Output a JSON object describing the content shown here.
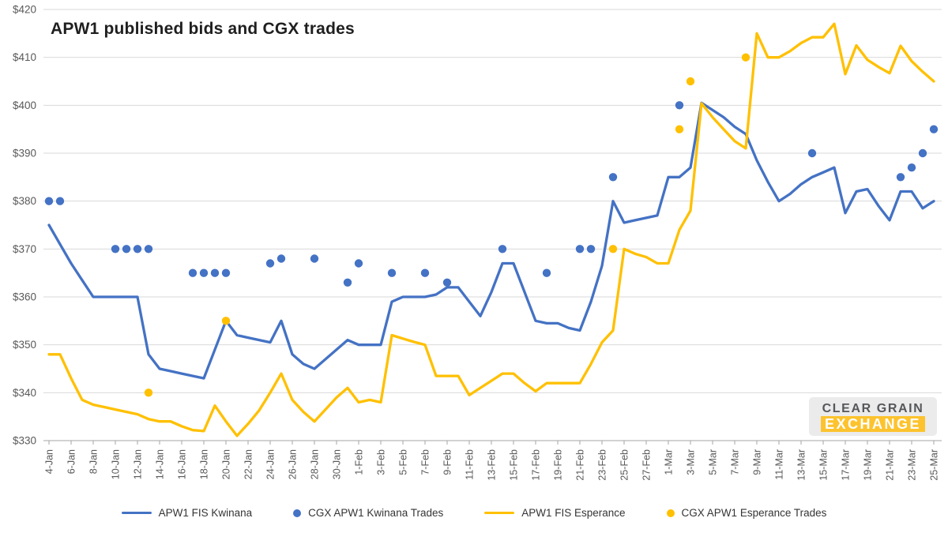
{
  "title": "APW1 published bids and CGX trades",
  "logo": {
    "line1": "CLEAR GRAIN",
    "line2": "EXCHANGE"
  },
  "colors": {
    "kwinana_blue": "#4472C4",
    "esperance_gold": "#FFC000",
    "gridline": "#D9D9D9",
    "axis_line": "#A6A6A6",
    "axis_text": "#595959",
    "legend_text": "#353535",
    "logo_bar": "#FDC32E"
  },
  "chart_data": {
    "type": "line+scatter",
    "title": "APW1 published bids and CGX trades",
    "xlabel": "",
    "ylabel": "",
    "grid": "horizontal",
    "legend_position": "bottom",
    "y_axis": {
      "min": 330,
      "max": 420,
      "step": 10,
      "prefix": "$",
      "tick_labels": [
        "$330",
        "$340",
        "$350",
        "$360",
        "$370",
        "$380",
        "$390",
        "$400",
        "$410",
        "$420"
      ]
    },
    "x_axis": {
      "tick_every_days": 2,
      "tick_labels": [
        "4-Jan",
        "6-Jan",
        "8-Jan",
        "10-Jan",
        "12-Jan",
        "14-Jan",
        "16-Jan",
        "18-Jan",
        "20-Jan",
        "22-Jan",
        "24-Jan",
        "26-Jan",
        "28-Jan",
        "30-Jan",
        "1-Feb",
        "3-Feb",
        "5-Feb",
        "7-Feb",
        "9-Feb",
        "11-Feb",
        "13-Feb",
        "15-Feb",
        "17-Feb",
        "19-Feb",
        "21-Feb",
        "23-Feb",
        "25-Feb",
        "27-Feb",
        "1-Mar",
        "3-Mar",
        "5-Mar",
        "7-Mar",
        "9-Mar",
        "11-Mar",
        "13-Mar",
        "15-Mar",
        "17-Mar",
        "19-Mar",
        "21-Mar",
        "23-Mar",
        "25-Mar"
      ]
    },
    "days": [
      "4-Jan",
      "5-Jan",
      "6-Jan",
      "7-Jan",
      "8-Jan",
      "9-Jan",
      "10-Jan",
      "11-Jan",
      "12-Jan",
      "13-Jan",
      "14-Jan",
      "15-Jan",
      "16-Jan",
      "17-Jan",
      "18-Jan",
      "19-Jan",
      "20-Jan",
      "21-Jan",
      "22-Jan",
      "23-Jan",
      "24-Jan",
      "25-Jan",
      "26-Jan",
      "27-Jan",
      "28-Jan",
      "29-Jan",
      "30-Jan",
      "31-Jan",
      "1-Feb",
      "2-Feb",
      "3-Feb",
      "4-Feb",
      "5-Feb",
      "6-Feb",
      "7-Feb",
      "8-Feb",
      "9-Feb",
      "10-Feb",
      "11-Feb",
      "12-Feb",
      "13-Feb",
      "14-Feb",
      "15-Feb",
      "16-Feb",
      "17-Feb",
      "18-Feb",
      "19-Feb",
      "20-Feb",
      "21-Feb",
      "22-Feb",
      "23-Feb",
      "24-Feb",
      "25-Feb",
      "26-Feb",
      "27-Feb",
      "28-Feb",
      "1-Mar",
      "2-Mar",
      "3-Mar",
      "4-Mar",
      "5-Mar",
      "6-Mar",
      "7-Mar",
      "8-Mar",
      "9-Mar",
      "10-Mar",
      "11-Mar",
      "12-Mar",
      "13-Mar",
      "14-Mar",
      "15-Mar",
      "16-Mar",
      "17-Mar",
      "18-Mar",
      "19-Mar",
      "20-Mar",
      "21-Mar",
      "22-Mar",
      "23-Mar",
      "24-Mar",
      "25-Mar"
    ],
    "series": [
      {
        "name": "APW1 FIS Kwinana",
        "type": "line",
        "color": "#4472C4",
        "values": [
          375,
          371,
          367,
          363.5,
          360,
          360,
          360,
          360,
          360,
          348,
          345,
          344.5,
          344,
          343.5,
          343,
          349,
          355,
          352,
          351.5,
          351,
          350.5,
          355,
          348,
          346,
          345,
          347,
          349,
          351,
          350,
          350,
          350,
          359,
          360,
          360,
          360,
          360.5,
          362,
          362,
          359,
          356,
          361,
          367,
          367,
          361,
          355,
          354.5,
          354.5,
          353.5,
          353,
          359,
          366.5,
          380,
          375.5,
          376,
          376.5,
          377,
          385,
          385,
          387,
          400.5,
          399,
          397.5,
          395.5,
          394,
          388.5,
          384,
          380,
          381.5,
          383.5,
          385,
          386,
          387,
          377.5,
          382,
          382.5,
          379,
          376,
          382,
          382,
          378.5,
          380
        ]
      },
      {
        "name": "CGX APW1 Kwinana Trades",
        "type": "scatter",
        "color": "#4472C4",
        "points": [
          [
            0,
            380
          ],
          [
            1,
            380
          ],
          [
            6,
            370
          ],
          [
            7,
            370
          ],
          [
            8,
            370
          ],
          [
            9,
            370
          ],
          [
            13,
            365
          ],
          [
            14,
            365
          ],
          [
            15,
            365
          ],
          [
            16,
            365
          ],
          [
            20,
            367
          ],
          [
            21,
            368
          ],
          [
            24,
            368
          ],
          [
            27,
            363
          ],
          [
            28,
            367
          ],
          [
            31,
            365
          ],
          [
            34,
            365
          ],
          [
            36,
            363
          ],
          [
            41,
            370
          ],
          [
            45,
            365
          ],
          [
            48,
            370
          ],
          [
            49,
            370
          ],
          [
            51,
            385
          ],
          [
            57,
            400
          ],
          [
            69,
            390
          ],
          [
            77,
            385
          ],
          [
            78,
            387
          ],
          [
            79,
            390
          ],
          [
            80,
            395
          ]
        ]
      },
      {
        "name": "APW1 FIS Esperance",
        "type": "line",
        "color": "#FFC000",
        "values": [
          348,
          348,
          343,
          338.5,
          337.5,
          337,
          336.5,
          336,
          335.5,
          334.5,
          334,
          334,
          333,
          332.2,
          332,
          337.3,
          334,
          331,
          333.5,
          336.3,
          340,
          344,
          338.5,
          336,
          334,
          336.5,
          339,
          341,
          338,
          338.5,
          338,
          352,
          351.3,
          350.6,
          350,
          343.5,
          343.5,
          343.5,
          339.5,
          341,
          342.5,
          344,
          344,
          342,
          340.3,
          342,
          342,
          342,
          342,
          346,
          350.5,
          353,
          370,
          369,
          368.3,
          367,
          367,
          374,
          378,
          400.4,
          397.5,
          395,
          392.5,
          391,
          415,
          410,
          410,
          411.3,
          413,
          414.2,
          414.2,
          417,
          406.5,
          412.5,
          409.5,
          408,
          406.7,
          412.4,
          409.2,
          407,
          405
        ]
      },
      {
        "name": "CGX APW1 Esperance Trades",
        "type": "scatter",
        "color": "#FFC000",
        "points": [
          [
            9,
            340
          ],
          [
            16,
            355
          ],
          [
            51,
            370
          ],
          [
            57,
            395
          ],
          [
            58,
            405
          ],
          [
            63,
            410
          ]
        ]
      }
    ]
  }
}
